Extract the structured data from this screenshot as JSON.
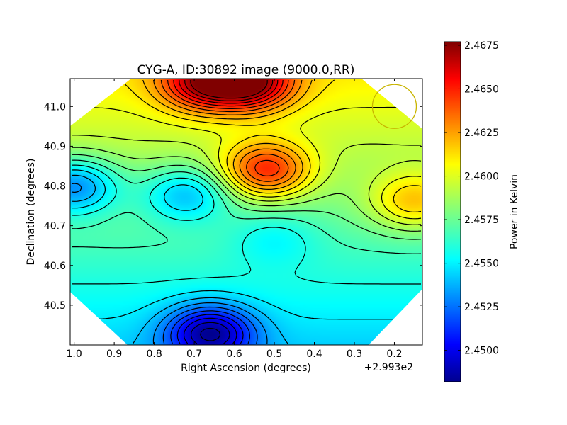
{
  "chart_data": {
    "type": "heatmap",
    "title": "CYG-A, ID:30892 image (9000.0,RR)",
    "xlabel": "Right Ascension (degrees)",
    "ylabel": "Declination (degrees)",
    "x_offset_text": "+2.993e2",
    "xlim": [
      1.01,
      0.13
    ],
    "ylim": [
      40.4,
      41.07
    ],
    "x_ticks": [
      "1.0",
      "0.9",
      "0.8",
      "0.7",
      "0.6",
      "0.5",
      "0.4",
      "0.3",
      "0.2"
    ],
    "y_ticks": [
      "40.5",
      "40.6",
      "40.7",
      "40.8",
      "40.9",
      "41.0"
    ],
    "colorbar": {
      "label": "Power in Kelvin",
      "range": [
        2.4482,
        2.4677
      ],
      "ticks": [
        "2.4500",
        "2.4525",
        "2.4550",
        "2.4575",
        "2.4600",
        "2.4625",
        "2.4650",
        "2.4675"
      ],
      "colormap": "jet"
    },
    "features": [
      {
        "kind": "max",
        "x": 0.68,
        "y": 41.06,
        "value": 2.4665
      },
      {
        "kind": "max",
        "x": 0.56,
        "y": 41.06,
        "value": 2.4675
      },
      {
        "kind": "max",
        "x": 0.52,
        "y": 40.84,
        "value": 2.4645
      },
      {
        "kind": "max",
        "x": 0.15,
        "y": 40.76,
        "value": 2.4615
      },
      {
        "kind": "min",
        "x": 0.66,
        "y": 40.43,
        "value": 2.4485
      },
      {
        "kind": "min",
        "x": 0.72,
        "y": 40.78,
        "value": 2.4545
      },
      {
        "kind": "min",
        "x": 1.0,
        "y": 40.8,
        "value": 2.4535
      },
      {
        "kind": "min",
        "x": 0.5,
        "y": 40.67,
        "value": 2.4555
      }
    ],
    "beam_circle": {
      "x": 0.2,
      "y": 41.0,
      "color": "#c8b400"
    }
  }
}
